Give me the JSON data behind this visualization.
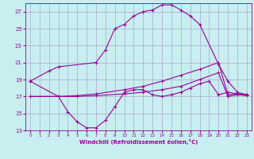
{
  "xlabel": "Windchill (Refroidissement éolien,°C)",
  "background_color": "#c8eef0",
  "grid_color": "#aaaacc",
  "line_color": "#990099",
  "xlim": [
    -0.5,
    23.5
  ],
  "ylim": [
    13,
    28
  ],
  "yticks": [
    13,
    15,
    17,
    19,
    21,
    23,
    25,
    27
  ],
  "xticks": [
    0,
    1,
    2,
    3,
    4,
    5,
    6,
    7,
    8,
    9,
    10,
    11,
    12,
    13,
    14,
    15,
    16,
    17,
    18,
    19,
    20,
    21,
    22,
    23
  ],
  "line1_x": [
    0,
    2,
    3,
    7,
    8,
    9,
    10,
    11,
    12,
    13,
    14,
    15,
    16,
    17,
    18,
    20,
    21,
    22,
    23
  ],
  "line1_y": [
    18.8,
    20.0,
    20.5,
    21.0,
    22.5,
    25.0,
    25.5,
    26.5,
    27.0,
    27.2,
    27.8,
    27.8,
    27.2,
    26.5,
    25.5,
    20.8,
    18.8,
    17.5,
    17.2
  ],
  "line2_x": [
    0,
    3,
    4,
    5,
    6,
    7,
    8,
    9,
    10,
    11,
    12,
    13,
    14,
    15,
    16,
    17,
    18,
    19,
    20,
    21,
    22,
    23
  ],
  "line2_y": [
    18.8,
    17.0,
    15.2,
    14.0,
    13.3,
    13.3,
    14.2,
    15.8,
    17.5,
    17.8,
    17.8,
    17.2,
    17.0,
    17.2,
    17.5,
    18.0,
    18.5,
    18.8,
    17.2,
    17.5,
    17.3,
    17.2
  ],
  "line3_x": [
    0,
    3,
    5,
    7,
    10,
    12,
    14,
    16,
    18,
    20,
    21,
    22,
    23
  ],
  "line3_y": [
    17.0,
    17.0,
    17.1,
    17.3,
    17.8,
    18.2,
    18.8,
    19.5,
    20.2,
    21.0,
    17.2,
    17.3,
    17.2
  ],
  "line4_x": [
    0,
    3,
    5,
    7,
    10,
    12,
    14,
    16,
    18,
    20,
    21,
    22,
    23
  ],
  "line4_y": [
    17.0,
    17.0,
    17.0,
    17.1,
    17.3,
    17.5,
    17.8,
    18.2,
    19.0,
    19.8,
    17.0,
    17.2,
    17.1
  ]
}
